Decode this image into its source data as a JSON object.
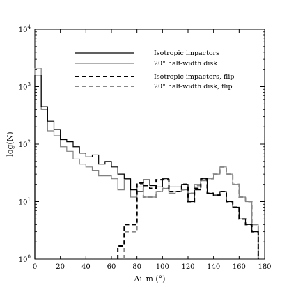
{
  "chart_data": {
    "type": "line",
    "step": true,
    "xlabel": "Δi_m (°)",
    "ylabel": "log(N)",
    "xlim": [
      0,
      180
    ],
    "ylim": [
      1,
      10000
    ],
    "yscale": "log",
    "grid": false,
    "legend_placement": "top-right",
    "x_ticks": [
      "0",
      "20",
      "40",
      "60",
      "80",
      "100",
      "120",
      "140",
      "160",
      "180"
    ],
    "y_ticks": [
      {
        "base": "10",
        "exp": "0",
        "value": 1
      },
      {
        "base": "10",
        "exp": "1",
        "value": 10
      },
      {
        "base": "10",
        "exp": "2",
        "value": 100
      },
      {
        "base": "10",
        "exp": "3",
        "value": 1000
      },
      {
        "base": "10",
        "exp": "4",
        "value": 10000
      }
    ],
    "bin_edges": [
      0,
      5,
      10,
      15,
      20,
      25,
      30,
      35,
      40,
      45,
      50,
      55,
      60,
      65,
      70,
      75,
      80,
      85,
      90,
      95,
      100,
      105,
      110,
      115,
      120,
      125,
      130,
      135,
      140,
      145,
      150,
      155,
      160,
      165,
      170,
      175
    ],
    "series": [
      {
        "name": "Isotropic impactors",
        "color": "#000000",
        "dash": "solid",
        "values": [
          1600,
          450,
          250,
          180,
          120,
          110,
          90,
          70,
          60,
          65,
          45,
          50,
          40,
          30,
          25,
          16,
          15,
          24,
          19,
          18,
          25,
          18,
          18,
          20,
          10,
          16,
          25,
          14,
          13,
          15,
          10,
          8,
          5,
          4,
          3
        ]
      },
      {
        "name": "20° half-width disk",
        "color": "#808080",
        "dash": "solid",
        "values": [
          2100,
          400,
          170,
          140,
          90,
          75,
          55,
          45,
          40,
          35,
          28,
          28,
          25,
          16,
          24,
          12,
          18,
          12,
          12,
          15,
          17,
          14,
          15,
          16,
          14,
          20,
          23,
          25,
          30,
          40,
          30,
          20,
          12,
          10,
          4
        ]
      },
      {
        "name": "Isotropic impactors, flip",
        "color": "#000000",
        "dash": "dashed",
        "values": [
          null,
          null,
          null,
          null,
          null,
          null,
          null,
          null,
          null,
          null,
          null,
          null,
          null,
          1.7,
          4,
          4,
          21,
          19,
          17,
          24,
          24,
          15,
          15,
          20,
          10,
          17,
          25,
          14,
          13,
          15,
          10,
          8,
          5,
          4,
          3
        ]
      },
      {
        "name": "20° half-width disk, flip",
        "color": "#888888",
        "dash": "dashed",
        "values": [
          null,
          null,
          null,
          null,
          null,
          null,
          null,
          null,
          null,
          null,
          null,
          null,
          null,
          null,
          3,
          3,
          20,
          12,
          12,
          15,
          17,
          14,
          15,
          16,
          14,
          19,
          24,
          25,
          30,
          40,
          30,
          20,
          12,
          10,
          4
        ]
      }
    ]
  }
}
